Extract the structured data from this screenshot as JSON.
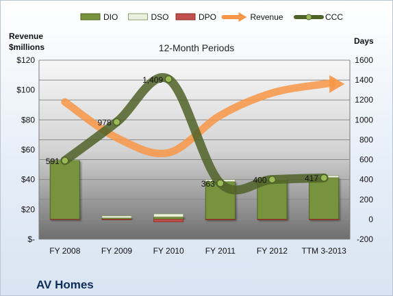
{
  "chart_data": {
    "type": "bar",
    "title": "12-Month Periods",
    "company_label": "AV Homes",
    "categories": [
      "FY 2008",
      "FY 2009",
      "FY 2010",
      "FY 2011",
      "FY 2012",
      "TTM 3-2013"
    ],
    "left_axis": {
      "label_line1": "Revenue",
      "label_line2": "$millions",
      "ylim": [
        0,
        120
      ],
      "ticks": [
        0,
        20,
        40,
        60,
        80,
        100,
        120
      ],
      "tick_labels": [
        "$-",
        "$20",
        "$40",
        "$60",
        "$80",
        "$100",
        "$120"
      ]
    },
    "right_axis": {
      "label": "Days",
      "ylim": [
        -200,
        1600
      ],
      "ticks": [
        -200,
        0,
        200,
        400,
        600,
        800,
        1000,
        1200,
        1400,
        1600
      ],
      "tick_labels": [
        "-200",
        "0",
        "200",
        "400",
        "600",
        "800",
        "1000",
        "1200",
        "1400",
        "1600"
      ]
    },
    "series": [
      {
        "name": "DIO",
        "kind": "bar",
        "axis": "right",
        "values": [
          591,
          15,
          25,
          380,
          400,
          420
        ],
        "color": "#77933c"
      },
      {
        "name": "DSO",
        "kind": "bar",
        "axis": "right",
        "values": [
          5,
          20,
          30,
          20,
          15,
          20
        ],
        "color": "#ebf1de"
      },
      {
        "name": "DPO",
        "kind": "bar",
        "axis": "right",
        "values": [
          3,
          5,
          25,
          5,
          5,
          5
        ],
        "color": "#c0504d"
      },
      {
        "name": "Revenue",
        "kind": "line",
        "axis": "left",
        "values": [
          92,
          68,
          58,
          83,
          98,
          104
        ],
        "color": "#f79646"
      },
      {
        "name": "CCC",
        "kind": "line",
        "axis": "right",
        "values": [
          591,
          978,
          1409,
          363,
          400,
          417
        ],
        "color": "#4f6228"
      }
    ],
    "data_labels": [
      "591",
      "978",
      "1,409",
      "363",
      "400",
      "417"
    ],
    "legend": "top",
    "grid": true
  }
}
